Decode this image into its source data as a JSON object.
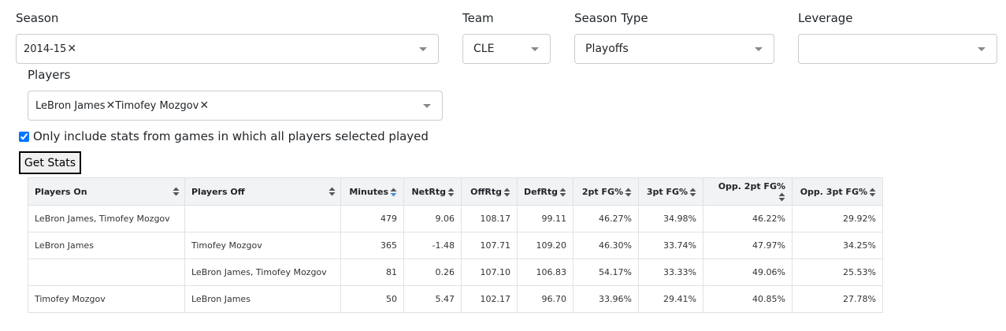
{
  "filters": {
    "season": {
      "label": "Season",
      "selected": [
        "2014-15"
      ]
    },
    "team": {
      "label": "Team",
      "value": "CLE"
    },
    "season_type": {
      "label": "Season Type",
      "value": "Playoffs"
    },
    "leverage": {
      "label": "Leverage"
    },
    "players": {
      "label": "Players",
      "selected": [
        "LeBron James",
        "Timofey Mozgov"
      ]
    },
    "checkbox": {
      "label": "Only include stats from games in which all players selected played",
      "checked": true
    },
    "button": "Get Stats"
  },
  "table": {
    "headers": [
      "Players On",
      "Players Off",
      "Minutes",
      "NetRtg",
      "OffRtg",
      "DefRtg",
      "2pt FG%",
      "3pt FG%",
      "Opp. 2pt FG%",
      "Opp. 3pt FG%"
    ],
    "rows": [
      [
        "LeBron James, Timofey Mozgov",
        null,
        "479",
        "9.06",
        "108.17",
        "99.11",
        "46.27%",
        "34.98%",
        "46.22%",
        "29.92%"
      ],
      [
        "LeBron James",
        "Timofey Mozgov",
        "365",
        "-1.48",
        "107.71",
        "109.20",
        "46.30%",
        "33.74%",
        "47.97%",
        "34.25%"
      ],
      [
        null,
        "LeBron James, Timofey Mozgov",
        "81",
        "0.26",
        "107.10",
        "106.83",
        "54.17%",
        "33.33%",
        "49.06%",
        "25.53%"
      ],
      [
        "Timofey Mozgov",
        "LeBron James",
        "50",
        "5.47",
        "102.17",
        "96.70",
        "33.96%",
        "29.41%",
        "40.85%",
        "27.78%"
      ]
    ]
  }
}
